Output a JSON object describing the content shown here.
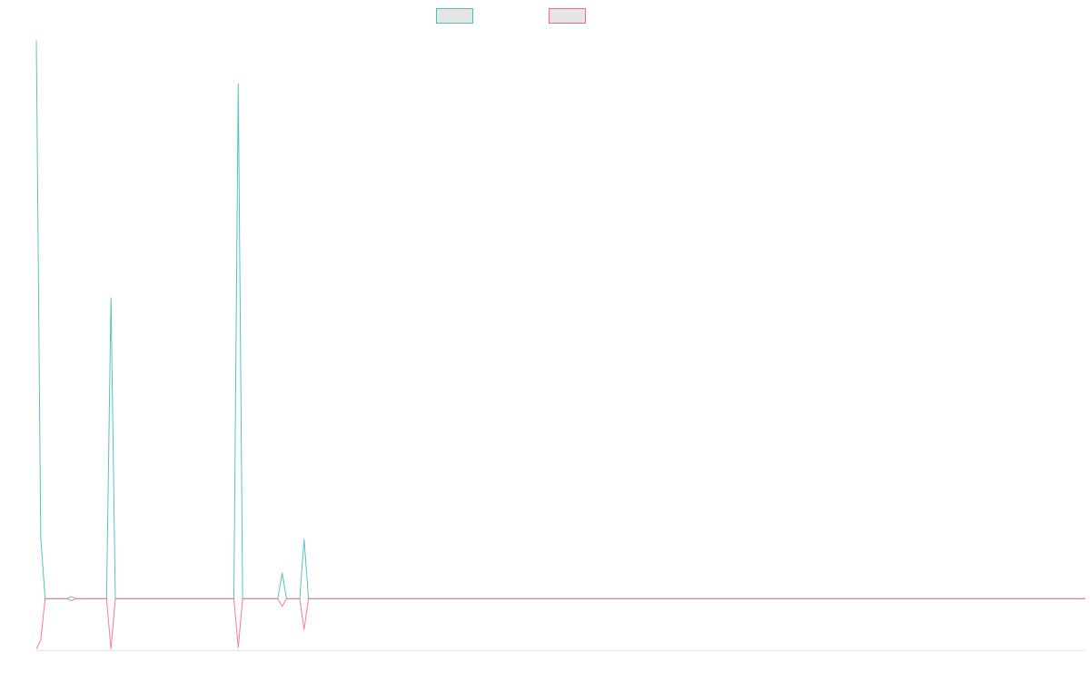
{
  "chart_data": {
    "type": "line",
    "title": "",
    "xlabel": "",
    "ylabel": "",
    "grid": false,
    "legend_position": "top-center",
    "x_count": 240,
    "ylim": [
      -100,
      1100
    ],
    "series": [
      {
        "color": "#4bc0c0",
        "fill": "#e6e6e6",
        "points": [
          [
            0,
            1085
          ],
          [
            1,
            120
          ],
          [
            2,
            0
          ],
          [
            7,
            0
          ],
          [
            8,
            4
          ],
          [
            9,
            0
          ],
          [
            16,
            0
          ],
          [
            17,
            585
          ],
          [
            18,
            0
          ],
          [
            45,
            0
          ],
          [
            46,
            1000
          ],
          [
            47,
            0
          ],
          [
            55,
            0
          ],
          [
            56,
            50
          ],
          [
            57,
            0
          ],
          [
            60,
            0
          ],
          [
            61,
            115
          ],
          [
            62,
            0
          ],
          [
            239,
            0
          ]
        ]
      },
      {
        "color": "#ff6384",
        "fill": "#e6e6e6",
        "points": [
          [
            0,
            -98
          ],
          [
            1,
            -80
          ],
          [
            2,
            0
          ],
          [
            7,
            0
          ],
          [
            8,
            -4
          ],
          [
            9,
            0
          ],
          [
            16,
            0
          ],
          [
            17,
            -98
          ],
          [
            18,
            0
          ],
          [
            45,
            0
          ],
          [
            46,
            -95
          ],
          [
            47,
            0
          ],
          [
            55,
            0
          ],
          [
            56,
            -15
          ],
          [
            57,
            0
          ],
          [
            60,
            0
          ],
          [
            61,
            -60
          ],
          [
            62,
            0
          ],
          [
            239,
            0
          ]
        ]
      }
    ]
  }
}
